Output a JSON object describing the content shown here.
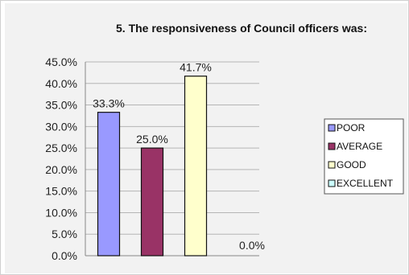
{
  "chart_data": {
    "type": "bar",
    "title": "5. The responsiveness of Council officers was:",
    "categories": [
      "POOR",
      "AVERAGE",
      "GOOD",
      "EXCELLENT"
    ],
    "values": [
      33.3,
      25.0,
      41.7,
      0.0
    ],
    "data_labels": [
      "33.3%",
      "25.0%",
      "41.7%",
      "0.0%"
    ],
    "colors": [
      "#9999ff",
      "#993366",
      "#ffffcc",
      "#ccffff"
    ],
    "ylim": [
      0,
      45
    ],
    "y_ticks": [
      0,
      5,
      10,
      15,
      20,
      25,
      30,
      35,
      40,
      45
    ],
    "y_tick_labels": [
      "0.0%",
      "5.0%",
      "10.0%",
      "15.0%",
      "20.0%",
      "25.0%",
      "30.0%",
      "35.0%",
      "40.0%",
      "45.0%"
    ],
    "xlabel": "",
    "ylabel": "",
    "grid": true,
    "legend_position": "right",
    "legend": [
      "POOR",
      "AVERAGE",
      "GOOD",
      "EXCELLENT"
    ]
  }
}
